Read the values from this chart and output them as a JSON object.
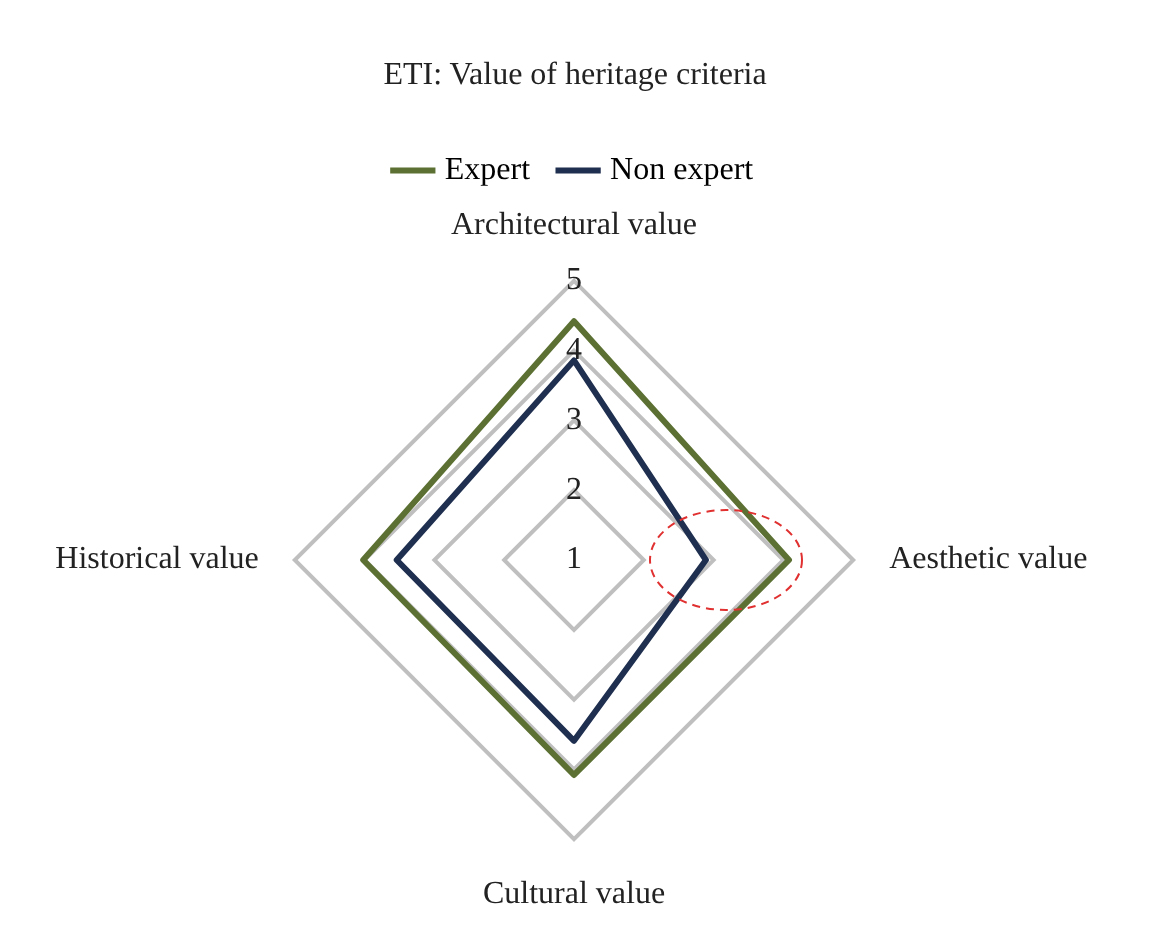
{
  "chart_data": {
    "type": "radar",
    "title": "ETI: Value of heritage criteria",
    "categories": [
      "Architectural value",
      "Aesthetic value",
      "Cultural value",
      "Historical value"
    ],
    "series": [
      {
        "name": "Expert",
        "color": "#5b7032",
        "values": [
          4.42,
          4.08,
          4.08,
          4.02
        ]
      },
      {
        "name": "Non expert",
        "color": "#1f2f4f",
        "values": [
          3.86,
          2.89,
          3.59,
          3.54
        ]
      }
    ],
    "ylim": [
      1,
      5
    ],
    "yticks": [
      1,
      2,
      3,
      4,
      5
    ],
    "grid": true,
    "legend": "top",
    "marker": "none",
    "line_style": "solid"
  }
}
